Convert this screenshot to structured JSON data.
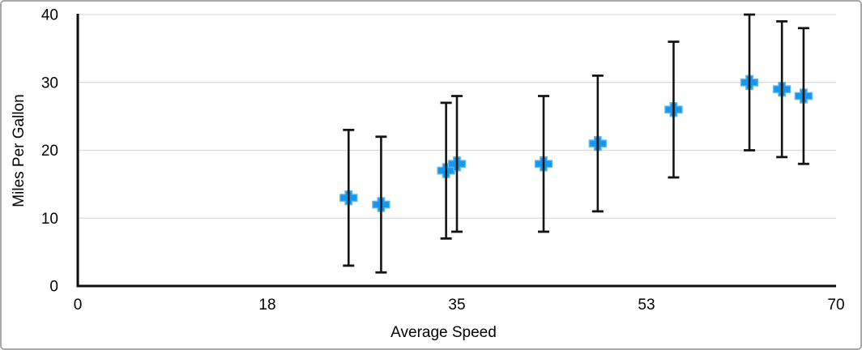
{
  "window": {
    "background": "#ffffff",
    "border_color": "#a9a9a9"
  },
  "chart_data": {
    "type": "scatter",
    "title": "",
    "xlabel": "Average Speed",
    "ylabel": "Miles Per Gallon",
    "xlim": [
      0,
      70
    ],
    "ylim": [
      0,
      40
    ],
    "x_ticks": [
      {
        "value": 0,
        "label": "0"
      },
      {
        "value": 17.5,
        "label": "18"
      },
      {
        "value": 35,
        "label": "35"
      },
      {
        "value": 52.5,
        "label": "53"
      },
      {
        "value": 70,
        "label": "70"
      }
    ],
    "y_ticks": [
      {
        "value": 0,
        "label": "0"
      },
      {
        "value": 10,
        "label": "10"
      },
      {
        "value": 20,
        "label": "20"
      },
      {
        "value": 30,
        "label": "30"
      },
      {
        "value": 40,
        "label": "40"
      }
    ],
    "grid": "horizontal-only",
    "legend_position": "none",
    "marker": {
      "shape": "plus",
      "width": 21,
      "height": 17,
      "arm_thickness": 8.4
    },
    "error_bars": {
      "axis": "y",
      "magnitude": 10,
      "cap_width": 14
    },
    "colors": {
      "marker": "#1598ec",
      "marker_halo": "#5eb8f2",
      "error_bar": "#141414",
      "axis": "#0d0d0d",
      "grid": "#dadada",
      "text": "#000000"
    },
    "points": [
      {
        "x": 25,
        "y": 13
      },
      {
        "x": 28,
        "y": 12
      },
      {
        "x": 34,
        "y": 17
      },
      {
        "x": 35,
        "y": 18
      },
      {
        "x": 43,
        "y": 18
      },
      {
        "x": 48,
        "y": 21
      },
      {
        "x": 55,
        "y": 26
      },
      {
        "x": 62,
        "y": 30
      },
      {
        "x": 65,
        "y": 29
      },
      {
        "x": 67,
        "y": 28
      }
    ]
  }
}
